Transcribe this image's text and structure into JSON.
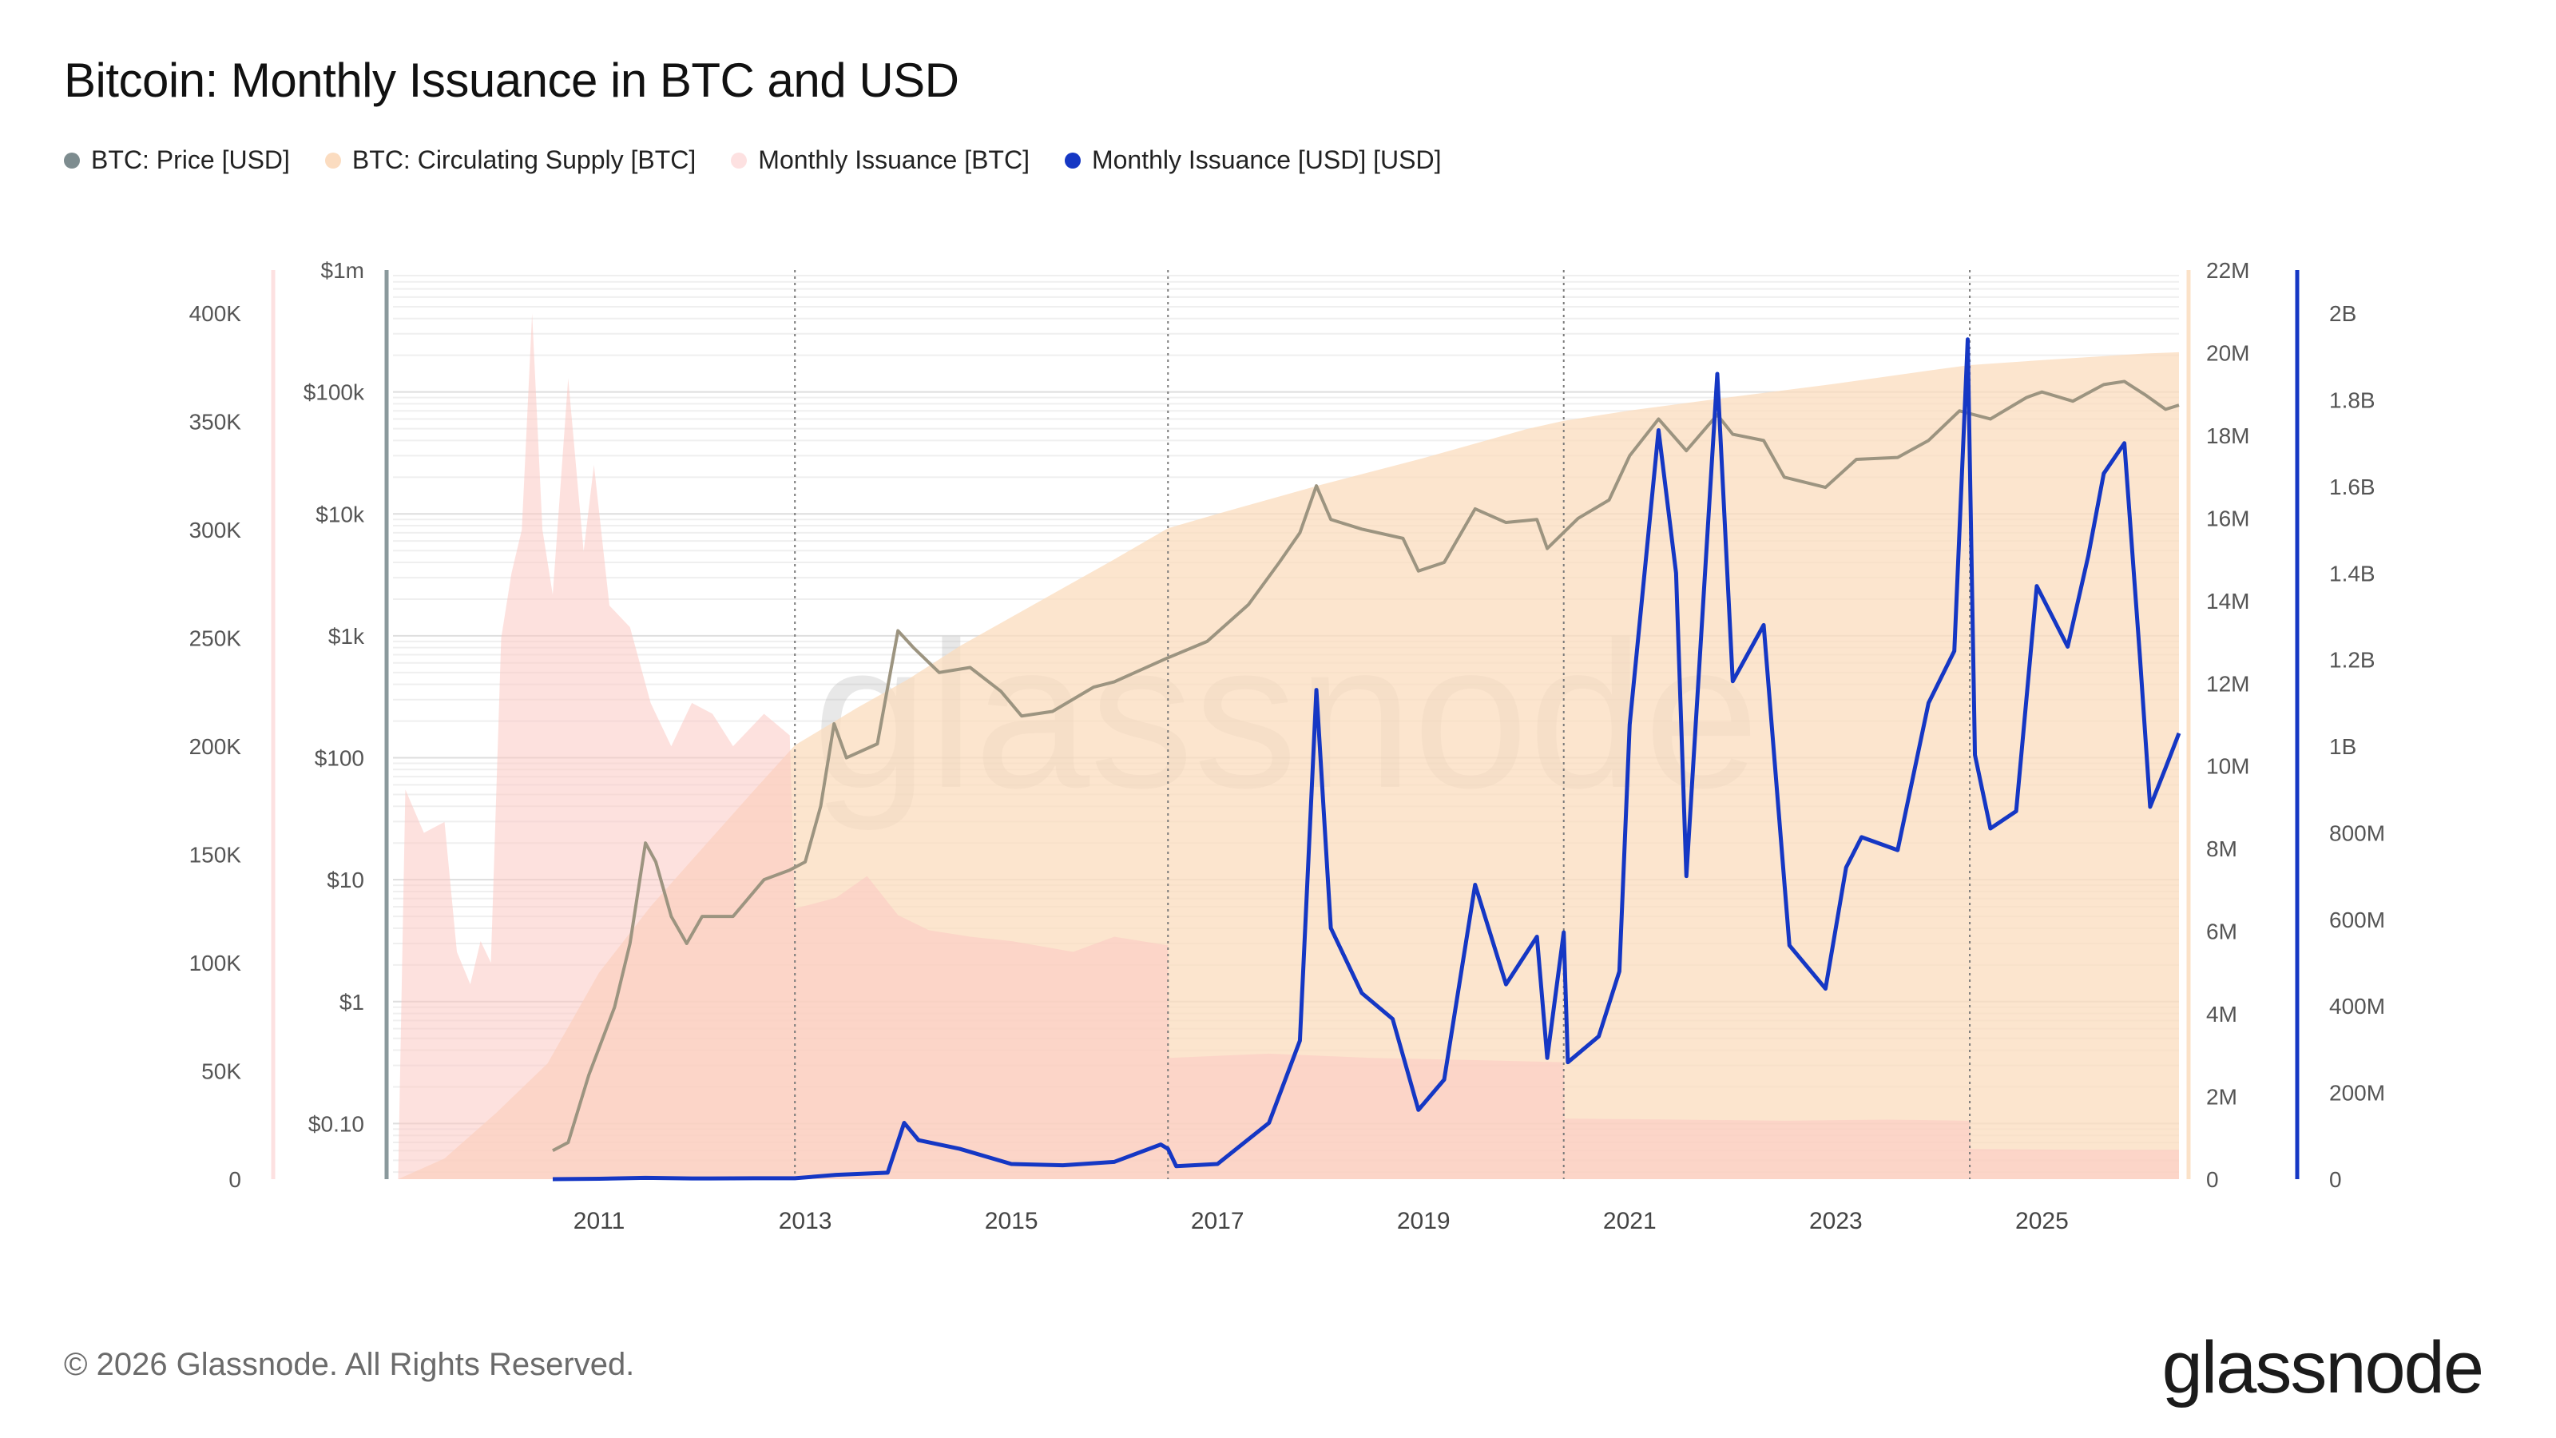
{
  "title": "Bitcoin: Monthly Issuance in BTC and USD",
  "legend": [
    {
      "label": "BTC: Price [USD]",
      "color": "#7d8c8f"
    },
    {
      "label": "BTC: Circulating Supply [BTC]",
      "color": "#fbdcc0"
    },
    {
      "label": "Monthly Issuance [BTC]",
      "color": "#fde1e1"
    },
    {
      "label": "Monthly Issuance [USD] [USD]",
      "color": "#1537c4"
    }
  ],
  "footer": "© 2026 Glassnode. All Rights Reserved.",
  "brand": "glassnode",
  "watermark": "glassnode",
  "chart_data": {
    "type": "line",
    "x_range": [
      2009.0,
      2026.33
    ],
    "x_ticks": [
      "2011",
      "2013",
      "2015",
      "2017",
      "2019",
      "2021",
      "2023",
      "2025"
    ],
    "x_tick_values": [
      2011,
      2013,
      2015,
      2017,
      2019,
      2021,
      2023,
      2025
    ],
    "halvings": [
      2012.9,
      2016.52,
      2020.36,
      2024.3
    ],
    "axes": {
      "issuance_btc": {
        "ticks": [
          "0",
          "50K",
          "100K",
          "150K",
          "200K",
          "250K",
          "300K",
          "350K",
          "400K"
        ],
        "tick_values": [
          0,
          50000,
          100000,
          150000,
          200000,
          250000,
          300000,
          350000,
          400000
        ],
        "range": [
          0,
          420000
        ],
        "color": "#fde1e1"
      },
      "price": {
        "ticks": [
          "$0.10",
          "$1",
          "$10",
          "$100",
          "$1k",
          "$10k",
          "$100k",
          "$1m"
        ],
        "tick_values": [
          0.1,
          1,
          10,
          100,
          1000,
          10000,
          100000,
          1000000
        ],
        "scale": "log",
        "range": [
          0.035,
          1000000
        ],
        "color": "#8a999c"
      },
      "supply": {
        "ticks": [
          "0",
          "2M",
          "4M",
          "6M",
          "8M",
          "10M",
          "12M",
          "14M",
          "16M",
          "18M",
          "20M",
          "22M"
        ],
        "tick_values": [
          0,
          2000000,
          4000000,
          6000000,
          8000000,
          10000000,
          12000000,
          14000000,
          16000000,
          18000000,
          20000000,
          22000000
        ],
        "range": [
          0,
          22000000
        ],
        "color": "#fbdcc0"
      },
      "issuance_usd": {
        "ticks": [
          "0",
          "200M",
          "400M",
          "600M",
          "800M",
          "1B",
          "1.2B",
          "1.4B",
          "1.6B",
          "1.8B",
          "2B"
        ],
        "tick_values": [
          0,
          200000000,
          400000000,
          600000000,
          800000000,
          1000000000,
          1200000000,
          1400000000,
          1600000000,
          1800000000,
          2000000000
        ],
        "range": [
          0,
          2100000000
        ],
        "color": "#1537c4"
      }
    },
    "series": [
      {
        "name": "BTC: Price [USD]",
        "axis": "price",
        "points": [
          [
            2010.55,
            0.06
          ],
          [
            2010.7,
            0.07
          ],
          [
            2010.9,
            0.25
          ],
          [
            2011.15,
            0.9
          ],
          [
            2011.3,
            3
          ],
          [
            2011.45,
            20
          ],
          [
            2011.55,
            14
          ],
          [
            2011.7,
            5
          ],
          [
            2011.85,
            3
          ],
          [
            2012.0,
            5
          ],
          [
            2012.3,
            5
          ],
          [
            2012.6,
            10
          ],
          [
            2012.85,
            12
          ],
          [
            2013.0,
            14
          ],
          [
            2013.15,
            40
          ],
          [
            2013.28,
            190
          ],
          [
            2013.4,
            100
          ],
          [
            2013.7,
            130
          ],
          [
            2013.9,
            1100
          ],
          [
            2014.05,
            800
          ],
          [
            2014.3,
            500
          ],
          [
            2014.6,
            550
          ],
          [
            2014.9,
            350
          ],
          [
            2015.1,
            220
          ],
          [
            2015.4,
            240
          ],
          [
            2015.8,
            380
          ],
          [
            2016.0,
            420
          ],
          [
            2016.5,
            650
          ],
          [
            2016.9,
            900
          ],
          [
            2017.3,
            1800
          ],
          [
            2017.6,
            4000
          ],
          [
            2017.8,
            7000
          ],
          [
            2017.96,
            17000
          ],
          [
            2018.1,
            9000
          ],
          [
            2018.4,
            7500
          ],
          [
            2018.8,
            6300
          ],
          [
            2018.95,
            3400
          ],
          [
            2019.2,
            4000
          ],
          [
            2019.5,
            11000
          ],
          [
            2019.8,
            8500
          ],
          [
            2020.1,
            9000
          ],
          [
            2020.2,
            5200
          ],
          [
            2020.5,
            9200
          ],
          [
            2020.8,
            13000
          ],
          [
            2021.0,
            30000
          ],
          [
            2021.28,
            60000
          ],
          [
            2021.55,
            33000
          ],
          [
            2021.85,
            65000
          ],
          [
            2022.0,
            45000
          ],
          [
            2022.3,
            40000
          ],
          [
            2022.5,
            20000
          ],
          [
            2022.9,
            16500
          ],
          [
            2023.2,
            28000
          ],
          [
            2023.6,
            29000
          ],
          [
            2023.9,
            40000
          ],
          [
            2024.2,
            70000
          ],
          [
            2024.5,
            60000
          ],
          [
            2024.85,
            90000
          ],
          [
            2025.0,
            100000
          ],
          [
            2025.3,
            84000
          ],
          [
            2025.6,
            115000
          ],
          [
            2025.8,
            122000
          ],
          [
            2026.0,
            95000
          ],
          [
            2026.2,
            72000
          ],
          [
            2026.33,
            78000
          ]
        ]
      },
      {
        "name": "BTC: Circulating Supply [BTC]",
        "axis": "supply",
        "points": [
          [
            2009.05,
            0
          ],
          [
            2009.5,
            500000
          ],
          [
            2010.0,
            1600000
          ],
          [
            2010.5,
            2800000
          ],
          [
            2011.0,
            5000000
          ],
          [
            2011.5,
            6600000
          ],
          [
            2012.0,
            8000000
          ],
          [
            2012.5,
            9400000
          ],
          [
            2012.9,
            10500000
          ],
          [
            2013.5,
            11400000
          ],
          [
            2014.0,
            12100000
          ],
          [
            2014.5,
            12900000
          ],
          [
            2015.0,
            13600000
          ],
          [
            2015.5,
            14300000
          ],
          [
            2016.0,
            15000000
          ],
          [
            2016.52,
            15750000
          ],
          [
            2017.0,
            16100000
          ],
          [
            2018.0,
            16800000
          ],
          [
            2019.0,
            17450000
          ],
          [
            2020.0,
            18150000
          ],
          [
            2020.36,
            18350000
          ],
          [
            2021.0,
            18600000
          ],
          [
            2022.0,
            18930000
          ],
          [
            2023.0,
            19250000
          ],
          [
            2024.0,
            19600000
          ],
          [
            2024.3,
            19700000
          ],
          [
            2025.0,
            19820000
          ],
          [
            2026.0,
            19980000
          ],
          [
            2026.33,
            20010000
          ]
        ]
      },
      {
        "name": "Monthly Issuance [BTC]",
        "axis": "issuance_btc",
        "points": [
          [
            2009.05,
            0
          ],
          [
            2009.12,
            180000
          ],
          [
            2009.3,
            160000
          ],
          [
            2009.5,
            165000
          ],
          [
            2009.62,
            105000
          ],
          [
            2009.75,
            90000
          ],
          [
            2009.85,
            110000
          ],
          [
            2009.95,
            100000
          ],
          [
            2010.05,
            250000
          ],
          [
            2010.15,
            280000
          ],
          [
            2010.25,
            300000
          ],
          [
            2010.35,
            400000
          ],
          [
            2010.45,
            300000
          ],
          [
            2010.55,
            270000
          ],
          [
            2010.7,
            370000
          ],
          [
            2010.85,
            290000
          ],
          [
            2010.95,
            330000
          ],
          [
            2011.1,
            265000
          ],
          [
            2011.3,
            255000
          ],
          [
            2011.5,
            220000
          ],
          [
            2011.7,
            200000
          ],
          [
            2011.9,
            220000
          ],
          [
            2012.1,
            215000
          ],
          [
            2012.3,
            200000
          ],
          [
            2012.6,
            215000
          ],
          [
            2012.85,
            205000
          ],
          [
            2012.9,
            125000
          ],
          [
            2013.3,
            130000
          ],
          [
            2013.6,
            140000
          ],
          [
            2013.9,
            122000
          ],
          [
            2014.2,
            115000
          ],
          [
            2014.6,
            112000
          ],
          [
            2015.0,
            110000
          ],
          [
            2015.6,
            105000
          ],
          [
            2016.0,
            112000
          ],
          [
            2016.52,
            108000
          ],
          [
            2016.53,
            56000
          ],
          [
            2017.5,
            58000
          ],
          [
            2018.5,
            56000
          ],
          [
            2019.5,
            55000
          ],
          [
            2020.36,
            54000
          ],
          [
            2020.37,
            28000
          ],
          [
            2021.5,
            27500
          ],
          [
            2022.5,
            27000
          ],
          [
            2023.5,
            27500
          ],
          [
            2024.3,
            27000
          ],
          [
            2024.31,
            14000
          ],
          [
            2025.5,
            13500
          ],
          [
            2026.33,
            13500
          ]
        ]
      },
      {
        "name": "Monthly Issuance [USD] [USD]",
        "axis": "issuance_usd",
        "points": [
          [
            2010.55,
            0
          ],
          [
            2011.0,
            1000000
          ],
          [
            2011.45,
            3000000
          ],
          [
            2011.9,
            1500000
          ],
          [
            2012.5,
            2000000
          ],
          [
            2012.9,
            2000000
          ],
          [
            2013.3,
            10000000
          ],
          [
            2013.8,
            15000000
          ],
          [
            2013.96,
            130000000
          ],
          [
            2014.1,
            90000000
          ],
          [
            2014.5,
            70000000
          ],
          [
            2015.0,
            35000000
          ],
          [
            2015.5,
            32000000
          ],
          [
            2016.0,
            40000000
          ],
          [
            2016.45,
            80000000
          ],
          [
            2016.52,
            70000000
          ],
          [
            2016.6,
            30000000
          ],
          [
            2017.0,
            35000000
          ],
          [
            2017.5,
            130000000
          ],
          [
            2017.8,
            320000000
          ],
          [
            2017.96,
            1130000000
          ],
          [
            2018.1,
            580000000
          ],
          [
            2018.4,
            430000000
          ],
          [
            2018.7,
            370000000
          ],
          [
            2018.95,
            160000000
          ],
          [
            2019.2,
            230000000
          ],
          [
            2019.5,
            680000000
          ],
          [
            2019.8,
            450000000
          ],
          [
            2020.1,
            560000000
          ],
          [
            2020.2,
            280000000
          ],
          [
            2020.36,
            570000000
          ],
          [
            2020.4,
            270000000
          ],
          [
            2020.7,
            330000000
          ],
          [
            2020.9,
            480000000
          ],
          [
            2021.0,
            1050000000
          ],
          [
            2021.28,
            1730000000
          ],
          [
            2021.45,
            1400000000
          ],
          [
            2021.55,
            700000000
          ],
          [
            2021.85,
            1860000000
          ],
          [
            2022.0,
            1150000000
          ],
          [
            2022.3,
            1280000000
          ],
          [
            2022.55,
            540000000
          ],
          [
            2022.9,
            440000000
          ],
          [
            2023.1,
            720000000
          ],
          [
            2023.25,
            790000000
          ],
          [
            2023.6,
            760000000
          ],
          [
            2023.9,
            1100000000
          ],
          [
            2024.15,
            1220000000
          ],
          [
            2024.28,
            1940000000
          ],
          [
            2024.35,
            980000000
          ],
          [
            2024.5,
            810000000
          ],
          [
            2024.75,
            850000000
          ],
          [
            2024.95,
            1370000000
          ],
          [
            2025.25,
            1230000000
          ],
          [
            2025.45,
            1440000000
          ],
          [
            2025.6,
            1630000000
          ],
          [
            2025.8,
            1700000000
          ],
          [
            2025.95,
            1210000000
          ],
          [
            2026.05,
            860000000
          ],
          [
            2026.2,
            950000000
          ],
          [
            2026.33,
            1030000000
          ]
        ]
      }
    ]
  }
}
